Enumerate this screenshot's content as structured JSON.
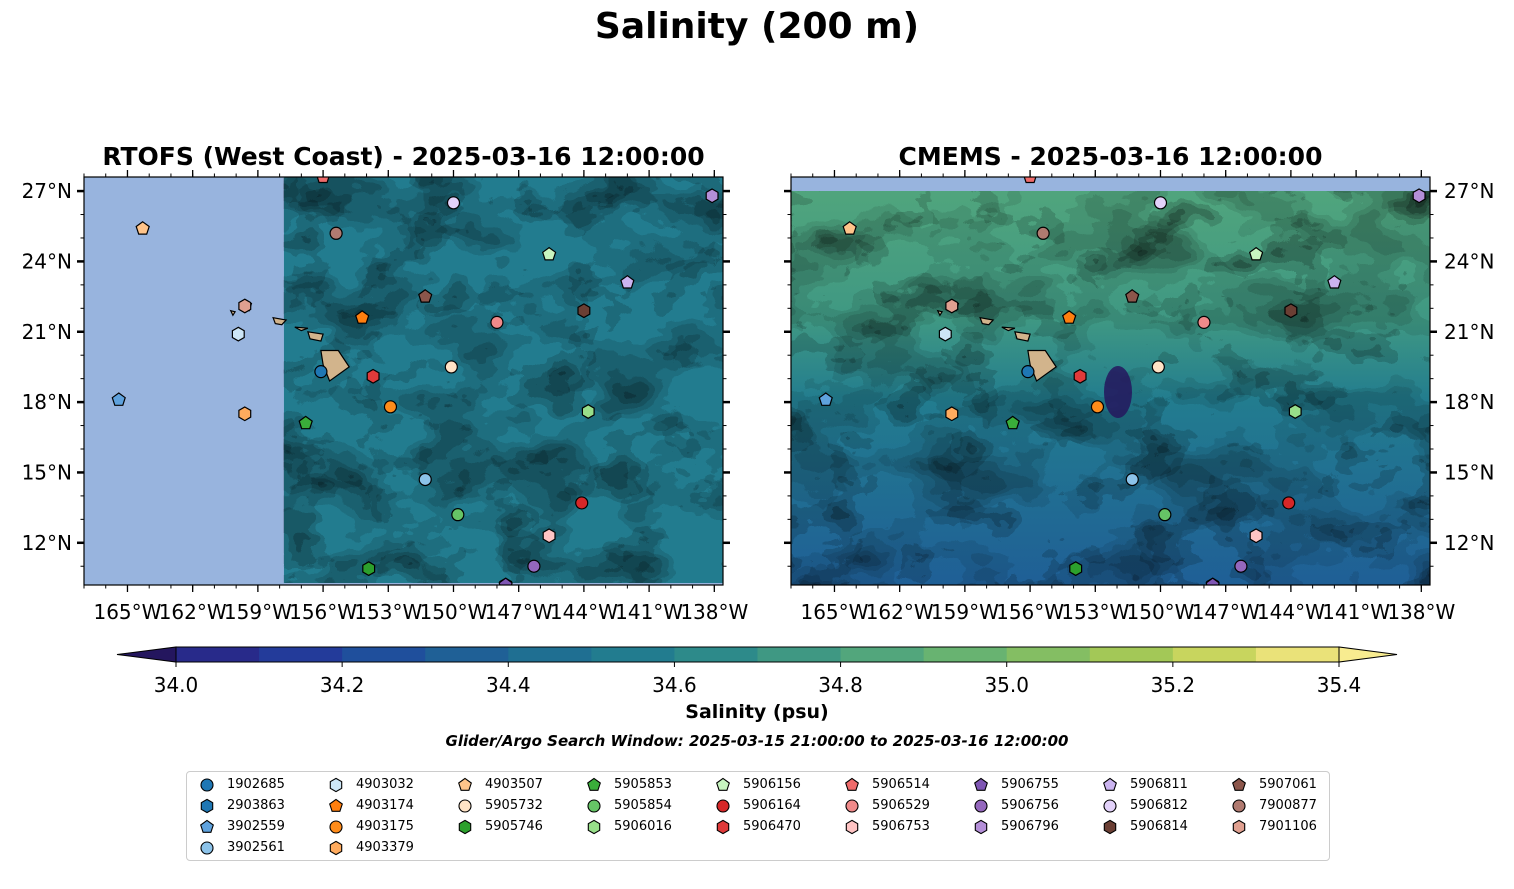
{
  "figure": {
    "title": "Salinity (200 m)",
    "left_panel_title": "RTOFS (West Coast) - 2025-03-16 12:00:00",
    "right_panel_title": "CMEMS - 2025-03-16 12:00:00",
    "colorbar_label": "Salinity (psu)",
    "search_window": "Glider/Argo Search Window: 2025-03-15 21:00:00 to 2025-03-16 12:00:00"
  },
  "map": {
    "lon_range": [
      -167,
      -137.6
    ],
    "lat_range": [
      10.2,
      27.6
    ],
    "lon_ticks": [
      -165,
      -162,
      -159,
      -156,
      -153,
      -150,
      -147,
      -144,
      -141,
      -138
    ],
    "lon_tick_labels": [
      "165°W",
      "162°W",
      "159°W",
      "156°W",
      "153°W",
      "150°W",
      "147°W",
      "144°W",
      "141°W",
      "138°W"
    ],
    "lat_ticks": [
      27,
      24,
      21,
      18,
      15,
      12
    ],
    "lat_tick_labels": [
      "27°N",
      "24°N",
      "21°N",
      "18°N",
      "15°N",
      "12°N"
    ],
    "rtofs_data_west_edge_lon": -157.8,
    "land_color": "#d2b48c",
    "nodata_color": "#98b4de"
  },
  "colorbar": {
    "ticks": [
      34.0,
      34.2,
      34.4,
      34.6,
      34.8,
      35.0,
      35.2,
      35.4
    ],
    "tick_labels": [
      "34.0",
      "34.2",
      "34.4",
      "34.6",
      "34.8",
      "35.0",
      "35.2",
      "35.4"
    ],
    "levels": [
      34.0,
      34.1,
      34.2,
      34.3,
      34.4,
      34.5,
      34.6,
      34.7,
      34.8,
      34.9,
      35.0,
      35.1,
      35.2,
      35.3,
      35.4
    ],
    "colors": [
      "#24165e",
      "#282a8a",
      "#233b9a",
      "#1f4f9c",
      "#1f6096",
      "#1f6f92",
      "#227c8f",
      "#2d8a8a",
      "#3f9883",
      "#52a67c",
      "#68b371",
      "#84be63",
      "#a3c857",
      "#c8d55e",
      "#eae279",
      "#f8ec90"
    ],
    "under_color": "#24165e",
    "over_color": "#f8ec90"
  },
  "chart_data": {
    "type": "scatter",
    "x_label": "Longitude",
    "y_label": "Latitude",
    "series": [
      {
        "name": "1902685",
        "marker": "circle",
        "color": "#1f77b4",
        "lon": [
          -156.1
        ],
        "lat": [
          19.3
        ]
      },
      {
        "name": "2903863",
        "marker": "hexagon",
        "color": "#1f77b4",
        "lon": [
          -147.6
        ],
        "lat": [
          10.2
        ]
      },
      {
        "name": "3902559",
        "marker": "pentagon",
        "color": "#5fa2dd",
        "lon": [
          -165.4
        ],
        "lat": [
          18.1
        ]
      },
      {
        "name": "3902561",
        "marker": "circle",
        "color": "#8cc3ea",
        "lon": [
          -151.3
        ],
        "lat": [
          14.7
        ]
      },
      {
        "name": "4903032",
        "marker": "hexagon",
        "color": "#cde6f7",
        "lon": [
          -159.9
        ],
        "lat": [
          20.9
        ]
      },
      {
        "name": "4903174",
        "marker": "pentagon",
        "color": "#ff7f0e",
        "lon": [
          -154.2
        ],
        "lat": [
          21.6
        ]
      },
      {
        "name": "4903175",
        "marker": "circle",
        "color": "#ff8c1a",
        "lon": [
          -152.9
        ],
        "lat": [
          17.8
        ]
      },
      {
        "name": "4903379",
        "marker": "hexagon",
        "color": "#ffab5e",
        "lon": [
          -159.6
        ],
        "lat": [
          17.5
        ]
      },
      {
        "name": "4903507",
        "marker": "pentagon",
        "color": "#ffc48a",
        "lon": [
          -164.3
        ],
        "lat": [
          25.4
        ]
      },
      {
        "name": "5905732",
        "marker": "circle",
        "color": "#ffe3c6",
        "lon": [
          -150.1
        ],
        "lat": [
          19.5
        ]
      },
      {
        "name": "5905746",
        "marker": "hexagon",
        "color": "#2ca02c",
        "lon": [
          -153.9
        ],
        "lat": [
          10.9
        ]
      },
      {
        "name": "5905853",
        "marker": "pentagon",
        "color": "#3aae3a",
        "lon": [
          -156.8
        ],
        "lat": [
          17.1
        ]
      },
      {
        "name": "5905854",
        "marker": "circle",
        "color": "#66c466",
        "lon": [
          -149.8
        ],
        "lat": [
          13.2
        ]
      },
      {
        "name": "5906016",
        "marker": "hexagon",
        "color": "#98df8a",
        "lon": [
          -143.8
        ],
        "lat": [
          17.6
        ]
      },
      {
        "name": "5906156",
        "marker": "pentagon",
        "color": "#c8f5c0",
        "lon": [
          -145.6
        ],
        "lat": [
          24.3
        ]
      },
      {
        "name": "5906164",
        "marker": "circle",
        "color": "#d62728",
        "lon": [
          -144.1
        ],
        "lat": [
          13.7
        ]
      },
      {
        "name": "5906470",
        "marker": "hexagon",
        "color": "#e03a3a",
        "lon": [
          -153.7
        ],
        "lat": [
          19.1
        ]
      },
      {
        "name": "5906514",
        "marker": "pentagon",
        "color": "#ef6b6b",
        "lon": [
          -156.0
        ],
        "lat": [
          27.6
        ]
      },
      {
        "name": "5906529",
        "marker": "circle",
        "color": "#f08a8a",
        "lon": [
          -148.0
        ],
        "lat": [
          21.4
        ]
      },
      {
        "name": "5906753",
        "marker": "hexagon",
        "color": "#ffc4c4",
        "lon": [
          -145.6
        ],
        "lat": [
          12.3
        ]
      },
      {
        "name": "5906755",
        "marker": "pentagon",
        "color": "#7f56b4",
        "lon": [
          -147.6
        ],
        "lat": [
          10.2
        ]
      },
      {
        "name": "5906756",
        "marker": "circle",
        "color": "#9467bd",
        "lon": [
          -146.3
        ],
        "lat": [
          11.0
        ]
      },
      {
        "name": "5906796",
        "marker": "hexagon",
        "color": "#b48fd8",
        "lon": [
          -138.1
        ],
        "lat": [
          26.8
        ]
      },
      {
        "name": "5906811",
        "marker": "pentagon",
        "color": "#cbb4f0",
        "lon": [
          -142.0
        ],
        "lat": [
          23.1
        ]
      },
      {
        "name": "5906812",
        "marker": "circle",
        "color": "#e3d2fa",
        "lon": [
          -150.0
        ],
        "lat": [
          26.5
        ]
      },
      {
        "name": "5906814",
        "marker": "hexagon",
        "color": "#6b3f34",
        "lon": [
          -144.0
        ],
        "lat": [
          21.9
        ]
      },
      {
        "name": "5907061",
        "marker": "pentagon",
        "color": "#8c564b",
        "lon": [
          -151.3
        ],
        "lat": [
          22.5
        ]
      },
      {
        "name": "7900877",
        "marker": "circle",
        "color": "#b07a70",
        "lon": [
          -155.4
        ],
        "lat": [
          25.2
        ]
      },
      {
        "name": "7901106",
        "marker": "hexagon",
        "color": "#e0a090",
        "lon": [
          -159.6
        ],
        "lat": [
          22.1
        ]
      }
    ]
  }
}
